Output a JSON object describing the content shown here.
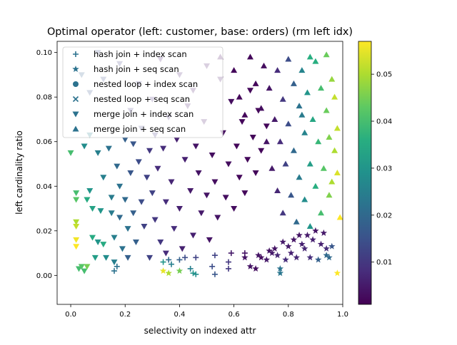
{
  "chart_data": {
    "type": "scatter",
    "title": "Optimal operator (left: customer, base: orders) (rm left idx)",
    "xlabel": "selectivity on indexed attr",
    "ylabel": "left cardinality ratio",
    "xlim": [
      -0.05,
      1.0
    ],
    "ylim": [
      -0.013,
      0.105
    ],
    "xticks": [
      "0.0",
      "0.2",
      "0.4",
      "0.6",
      "0.8",
      "1.0"
    ],
    "xtick_values": [
      0.0,
      0.2,
      0.4,
      0.6,
      0.8,
      1.0
    ],
    "yticks": [
      "0.00",
      "0.02",
      "0.04",
      "0.06",
      "0.08",
      "0.10"
    ],
    "ytick_values": [
      0.0,
      0.02,
      0.04,
      0.06,
      0.08,
      0.1
    ],
    "grid": false,
    "legend_position": "top-left",
    "colormap": "viridis",
    "colorbar": {
      "min": 0.001,
      "max": 0.057,
      "ticks": [
        "0.01",
        "0.02",
        "0.03",
        "0.04",
        "0.05"
      ],
      "tick_values": [
        0.01,
        0.02,
        0.03,
        0.04,
        0.05
      ]
    },
    "series": [
      {
        "name": "hash join + index scan",
        "marker": "plus",
        "points": [
          [
            0.16,
            0.002,
            0.022
          ],
          [
            0.17,
            0.004,
            0.022
          ],
          [
            0.34,
            0.006,
            0.03
          ],
          [
            0.37,
            0.005,
            0.025
          ],
          [
            0.4,
            0.007,
            0.018
          ],
          [
            0.44,
            0.003,
            0.025
          ],
          [
            0.45,
            0.001,
            0.03
          ],
          [
            0.46,
            0.008,
            0.012
          ],
          [
            0.46,
            0.0005,
            0.028
          ],
          [
            0.52,
            0.004,
            0.014
          ],
          [
            0.53,
            0.0005,
            0.016
          ],
          [
            0.53,
            0.009,
            0.012
          ],
          [
            0.58,
            0.003,
            0.01
          ],
          [
            0.58,
            0.006,
            0.01
          ],
          [
            0.59,
            0.01,
            0.005
          ],
          [
            0.64,
            0.01,
            0.004
          ],
          [
            0.42,
            0.008,
            0.014
          ],
          [
            0.36,
            0.007,
            0.02
          ]
        ]
      },
      {
        "name": "hash join + seq scan",
        "marker": "star",
        "points": [
          [
            0.34,
            0.002,
            0.055
          ],
          [
            0.36,
            0.001,
            0.05
          ],
          [
            0.4,
            0.002,
            0.045
          ],
          [
            0.98,
            0.001,
            0.057
          ],
          [
            0.64,
            0.008,
            0.004
          ],
          [
            0.66,
            0.004,
            0.004
          ],
          [
            0.68,
            0.003,
            0.003
          ],
          [
            0.7,
            0.008,
            0.003
          ],
          [
            0.72,
            0.007,
            0.005
          ],
          [
            0.73,
            0.011,
            0.004
          ],
          [
            0.75,
            0.012,
            0.004
          ],
          [
            0.76,
            0.009,
            0.007
          ],
          [
            0.77,
            0.003,
            0.022
          ],
          [
            0.77,
            0.001,
            0.023
          ],
          [
            0.78,
            0.015,
            0.005
          ],
          [
            0.79,
            0.007,
            0.008
          ],
          [
            0.8,
            0.013,
            0.005
          ],
          [
            0.81,
            0.01,
            0.006
          ],
          [
            0.82,
            0.016,
            0.004
          ],
          [
            0.83,
            0.008,
            0.007
          ],
          [
            0.84,
            0.018,
            0.004
          ],
          [
            0.85,
            0.014,
            0.006
          ],
          [
            0.86,
            0.012,
            0.007
          ],
          [
            0.87,
            0.018,
            0.005
          ],
          [
            0.88,
            0.008,
            0.008
          ],
          [
            0.89,
            0.016,
            0.006
          ],
          [
            0.9,
            0.02,
            0.004
          ],
          [
            0.91,
            0.007,
            0.018
          ],
          [
            0.92,
            0.014,
            0.006
          ],
          [
            0.93,
            0.019,
            0.005
          ],
          [
            0.94,
            0.009,
            0.02
          ],
          [
            0.95,
            0.008,
            0.02
          ],
          [
            0.96,
            0.013,
            0.016
          ],
          [
            0.94,
            0.012,
            0.008
          ],
          [
            0.74,
            0.01,
            0.005
          ],
          [
            0.69,
            0.009,
            0.004
          ]
        ]
      },
      {
        "name": "nested loop + index scan",
        "marker": "circle",
        "points": []
      },
      {
        "name": "nested loop + seq scan",
        "marker": "x",
        "points": []
      },
      {
        "name": "merge join + index scan",
        "marker": "triangle-down",
        "points": [
          [
            0.0,
            0.055,
            0.04
          ],
          [
            0.02,
            0.037,
            0.04
          ],
          [
            0.02,
            0.034,
            0.042
          ],
          [
            0.02,
            0.024,
            0.05
          ],
          [
            0.02,
            0.022,
            0.052
          ],
          [
            0.02,
            0.016,
            0.056
          ],
          [
            0.02,
            0.013,
            0.057
          ],
          [
            0.03,
            0.003,
            0.04
          ],
          [
            0.04,
            0.004,
            0.042
          ],
          [
            0.05,
            0.002,
            0.04
          ],
          [
            0.06,
            0.004,
            0.045
          ],
          [
            0.05,
            0.058,
            0.028
          ],
          [
            0.07,
            0.063,
            0.025
          ],
          [
            0.06,
            0.034,
            0.035
          ],
          [
            0.07,
            0.038,
            0.03
          ],
          [
            0.08,
            0.03,
            0.033
          ],
          [
            0.08,
            0.017,
            0.035
          ],
          [
            0.09,
            0.008,
            0.032
          ],
          [
            0.1,
            0.015,
            0.03
          ],
          [
            0.1,
            0.055,
            0.025
          ],
          [
            0.11,
            0.029,
            0.03
          ],
          [
            0.12,
            0.044,
            0.025
          ],
          [
            0.12,
            0.014,
            0.035
          ],
          [
            0.13,
            0.008,
            0.028
          ],
          [
            0.14,
            0.057,
            0.022
          ],
          [
            0.15,
            0.035,
            0.024
          ],
          [
            0.15,
            0.028,
            0.024
          ],
          [
            0.16,
            0.017,
            0.025
          ],
          [
            0.16,
            0.006,
            0.025
          ],
          [
            0.17,
            0.049,
            0.02
          ],
          [
            0.18,
            0.04,
            0.022
          ],
          [
            0.18,
            0.026,
            0.02
          ],
          [
            0.19,
            0.012,
            0.022
          ],
          [
            0.2,
            0.061,
            0.018
          ],
          [
            0.2,
            0.034,
            0.02
          ],
          [
            0.21,
            0.021,
            0.022
          ],
          [
            0.21,
            0.008,
            0.018
          ],
          [
            0.22,
            0.046,
            0.016
          ],
          [
            0.23,
            0.059,
            0.016
          ],
          [
            0.23,
            0.028,
            0.018
          ],
          [
            0.24,
            0.015,
            0.018
          ],
          [
            0.25,
            0.051,
            0.014
          ],
          [
            0.26,
            0.066,
            0.012
          ],
          [
            0.26,
            0.033,
            0.014
          ],
          [
            0.27,
            0.022,
            0.012
          ],
          [
            0.28,
            0.044,
            0.012
          ],
          [
            0.29,
            0.056,
            0.01
          ],
          [
            0.29,
            0.008,
            0.012
          ],
          [
            0.3,
            0.037,
            0.012
          ],
          [
            0.31,
            0.063,
            0.01
          ],
          [
            0.31,
            0.025,
            0.01
          ],
          [
            0.32,
            0.048,
            0.008
          ],
          [
            0.33,
            0.015,
            0.01
          ],
          [
            0.34,
            0.057,
            0.008
          ],
          [
            0.35,
            0.033,
            0.008
          ],
          [
            0.35,
            0.01,
            0.008
          ],
          [
            0.36,
            0.071,
            0.008
          ],
          [
            0.37,
            0.042,
            0.007
          ],
          [
            0.38,
            0.021,
            0.008
          ],
          [
            0.39,
            0.061,
            0.006
          ],
          [
            0.4,
            0.03,
            0.006
          ],
          [
            0.41,
            0.012,
            0.006
          ],
          [
            0.42,
            0.052,
            0.006
          ],
          [
            0.43,
            0.076,
            0.005
          ],
          [
            0.44,
            0.038,
            0.005
          ],
          [
            0.45,
            0.018,
            0.006
          ],
          [
            0.46,
            0.058,
            0.004
          ],
          [
            0.47,
            0.046,
            0.004
          ],
          [
            0.48,
            0.028,
            0.005
          ],
          [
            0.49,
            0.069,
            0.004
          ],
          [
            0.5,
            0.036,
            0.004
          ],
          [
            0.51,
            0.016,
            0.004
          ],
          [
            0.52,
            0.054,
            0.003
          ],
          [
            0.53,
            0.042,
            0.003
          ],
          [
            0.54,
            0.026,
            0.004
          ],
          [
            0.55,
            0.088,
            0.004
          ],
          [
            0.56,
            0.064,
            0.003
          ],
          [
            0.57,
            0.035,
            0.003
          ],
          [
            0.58,
            0.05,
            0.003
          ],
          [
            0.59,
            0.078,
            0.003
          ],
          [
            0.6,
            0.03,
            0.003
          ],
          [
            0.61,
            0.058,
            0.002
          ],
          [
            0.62,
            0.044,
            0.002
          ],
          [
            0.63,
            0.069,
            0.002
          ],
          [
            0.64,
            0.037,
            0.002
          ],
          [
            0.65,
            0.052,
            0.002
          ],
          [
            0.66,
            0.083,
            0.002
          ],
          [
            0.67,
            0.062,
            0.002
          ],
          [
            0.68,
            0.046,
            0.002
          ],
          [
            0.69,
            0.074,
            0.002
          ],
          [
            0.7,
            0.056,
            0.002
          ],
          [
            0.72,
            0.067,
            0.002
          ],
          [
            0.12,
            0.088,
            0.014
          ],
          [
            0.18,
            0.095,
            0.012
          ],
          [
            0.25,
            0.086,
            0.01
          ],
          [
            0.3,
            0.079,
            0.008
          ],
          [
            0.33,
            0.097,
            0.006
          ],
          [
            0.4,
            0.09,
            0.006
          ],
          [
            0.45,
            0.083,
            0.004
          ],
          [
            0.5,
            0.094,
            0.004
          ],
          [
            0.07,
            0.082,
            0.016
          ],
          [
            0.04,
            0.09,
            0.018
          ],
          [
            0.1,
            0.1,
            0.014
          ],
          [
            0.22,
            0.074,
            0.01
          ]
        ]
      },
      {
        "name": "merge join + seq scan",
        "marker": "triangle-up",
        "points": [
          [
            0.55,
            0.098,
            0.002
          ],
          [
            0.6,
            0.092,
            0.002
          ],
          [
            0.62,
            0.08,
            0.002
          ],
          [
            0.64,
            0.072,
            0.002
          ],
          [
            0.66,
            0.098,
            0.002
          ],
          [
            0.68,
            0.086,
            0.002
          ],
          [
            0.7,
            0.075,
            0.003
          ],
          [
            0.71,
            0.094,
            0.003
          ],
          [
            0.72,
            0.06,
            0.004
          ],
          [
            0.73,
            0.084,
            0.004
          ],
          [
            0.74,
            0.048,
            0.005
          ],
          [
            0.75,
            0.07,
            0.005
          ],
          [
            0.76,
            0.092,
            0.008
          ],
          [
            0.76,
            0.038,
            0.007
          ],
          [
            0.77,
            0.06,
            0.008
          ],
          [
            0.78,
            0.079,
            0.01
          ],
          [
            0.78,
            0.028,
            0.01
          ],
          [
            0.79,
            0.05,
            0.012
          ],
          [
            0.8,
            0.097,
            0.014
          ],
          [
            0.8,
            0.068,
            0.014
          ],
          [
            0.81,
            0.036,
            0.016
          ],
          [
            0.82,
            0.086,
            0.018
          ],
          [
            0.82,
            0.056,
            0.02
          ],
          [
            0.83,
            0.024,
            0.02
          ],
          [
            0.84,
            0.076,
            0.022
          ],
          [
            0.84,
            0.044,
            0.024
          ],
          [
            0.85,
            0.092,
            0.026
          ],
          [
            0.86,
            0.064,
            0.026
          ],
          [
            0.86,
            0.034,
            0.028
          ],
          [
            0.87,
            0.082,
            0.03
          ],
          [
            0.88,
            0.05,
            0.032
          ],
          [
            0.88,
            0.022,
            0.03
          ],
          [
            0.89,
            0.07,
            0.034
          ],
          [
            0.9,
            0.096,
            0.036
          ],
          [
            0.9,
            0.04,
            0.036
          ],
          [
            0.91,
            0.06,
            0.038
          ],
          [
            0.92,
            0.084,
            0.04
          ],
          [
            0.92,
            0.028,
            0.04
          ],
          [
            0.93,
            0.048,
            0.042
          ],
          [
            0.94,
            0.074,
            0.044
          ],
          [
            0.94,
            0.099,
            0.044
          ],
          [
            0.95,
            0.036,
            0.046
          ],
          [
            0.95,
            0.062,
            0.046
          ],
          [
            0.96,
            0.088,
            0.048
          ],
          [
            0.96,
            0.042,
            0.05
          ],
          [
            0.97,
            0.056,
            0.05
          ],
          [
            0.97,
            0.08,
            0.052
          ],
          [
            0.98,
            0.046,
            0.054
          ],
          [
            0.98,
            0.066,
            0.052
          ],
          [
            0.99,
            0.026,
            0.057
          ],
          [
            0.88,
            0.098,
            0.036
          ],
          [
            0.85,
            0.072,
            0.024
          ]
        ]
      }
    ]
  }
}
